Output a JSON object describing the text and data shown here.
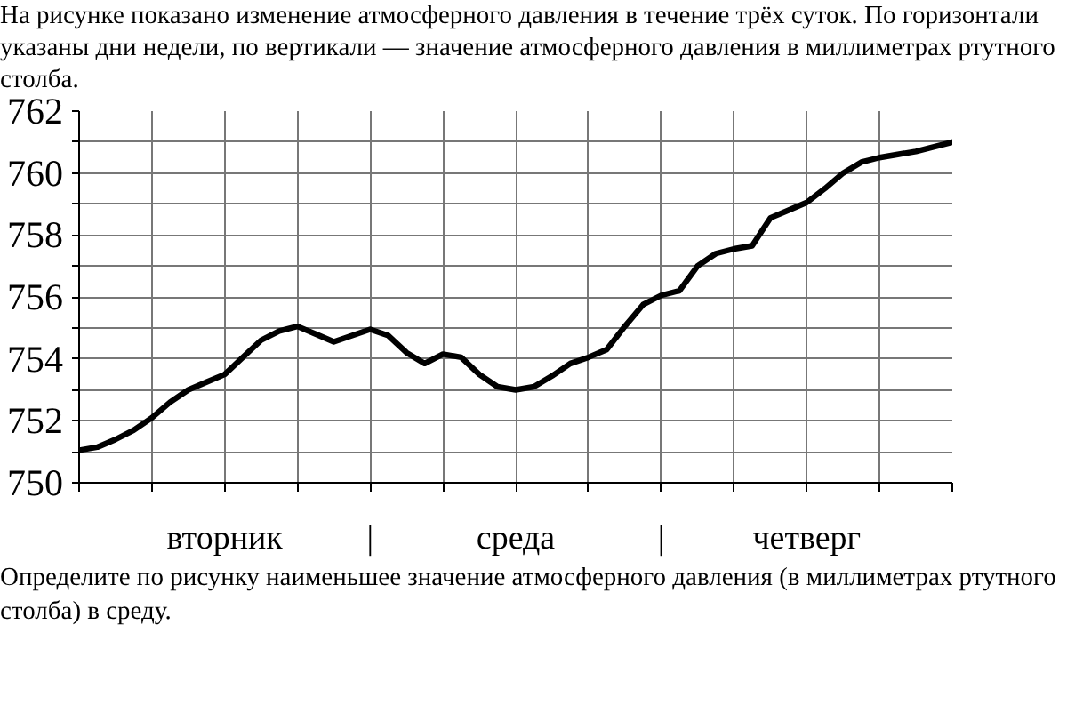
{
  "chart_data": {
    "type": "line",
    "title": "На рисунке показано изменение атмосферного давления в течение трёх суток. По горизонтали указаны дни недели, по вертикали — значение атмосферного давления в миллиметрах ртутного столба.",
    "annotations": [
      "Определите по рисунку наименьшее значение атмосферного давления (в миллиметрах ртутного столба) в среду."
    ],
    "categories": [
      null,
      null,
      null,
      null,
      null,
      null,
      null,
      null,
      "вторник",
      null,
      null,
      null,
      null,
      null,
      null,
      null,
      "|",
      null,
      null,
      null,
      null,
      null,
      null,
      null,
      "среда",
      null,
      null,
      null,
      null,
      null,
      null,
      null,
      "|",
      null,
      null,
      null,
      null,
      null,
      null,
      null,
      "четверг",
      null,
      null,
      null,
      null,
      null,
      null,
      null,
      null
    ],
    "series": [
      {
        "color": "#000000",
        "values": [
          751.05,
          751.15,
          751.4,
          751.7,
          752.1,
          752.6,
          753.0,
          753.25,
          753.5,
          754.05,
          754.6,
          754.9,
          755.05,
          754.8,
          754.55,
          754.75,
          754.95,
          754.75,
          754.2,
          753.85,
          754.15,
          754.05,
          753.5,
          753.1,
          753.0,
          753.1,
          753.45,
          753.85,
          754.05,
          754.3,
          755.05,
          755.75,
          756.05,
          756.2,
          757.0,
          757.4,
          757.55,
          757.65,
          758.55,
          758.8,
          759.05,
          759.5,
          760.0,
          760.35,
          760.5,
          760.6,
          760.7,
          760.85,
          761.0
        ]
      }
    ],
    "ylim": [
      750,
      762
    ],
    "yticks": [
      750,
      {
        "value": 751,
        "label": null
      },
      752,
      {
        "value": 753,
        "label": null
      },
      754,
      {
        "value": 755,
        "label": null
      },
      756,
      {
        "value": 757,
        "label": null
      },
      758,
      {
        "value": 759,
        "label": null
      },
      760,
      {
        "value": 761,
        "label": null
      },
      762
    ],
    "grid": true,
    "marker": "none",
    "line_style": "solid"
  }
}
